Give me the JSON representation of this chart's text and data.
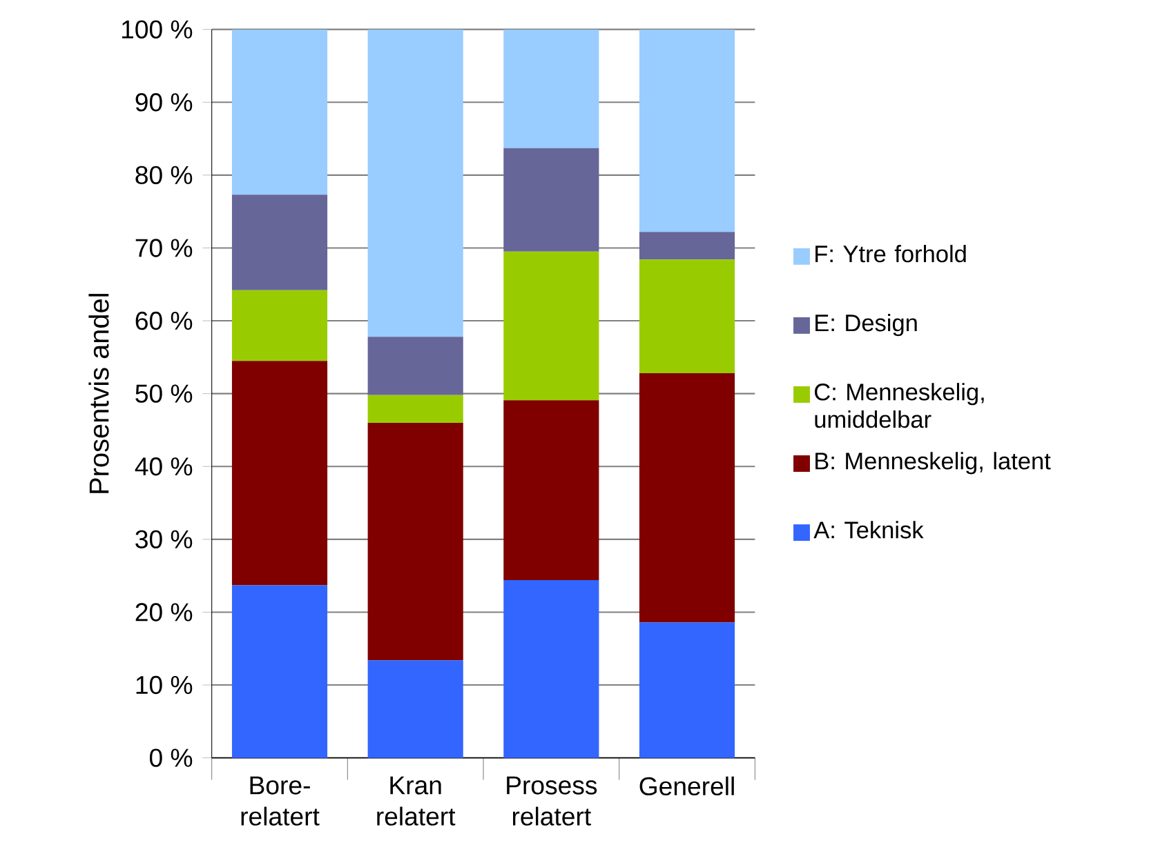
{
  "chart_data": {
    "type": "bar",
    "stacked": true,
    "ylabel": "Prosentvis andel",
    "categories": [
      "Bore- relatert",
      "Kran relatert",
      "Prosess relatert",
      "Generell"
    ],
    "series": [
      {
        "name": "A: Teknisk",
        "color": "#3366ff",
        "values": [
          23.7,
          13.4,
          24.4,
          18.6
        ]
      },
      {
        "name": "B: Menneskelig, latent",
        "color": "#800000",
        "values": [
          30.8,
          32.6,
          24.7,
          34.2
        ]
      },
      {
        "name": "C: Menneskelig, umiddelbar",
        "color": "#99cc00",
        "values": [
          9.7,
          3.8,
          20.4,
          15.6
        ]
      },
      {
        "name": "E: Design",
        "color": "#666699",
        "values": [
          13.1,
          8.0,
          14.2,
          3.8
        ]
      },
      {
        "name": "F: Ytre forhold",
        "color": "#99ccff",
        "values": [
          22.7,
          42.2,
          16.3,
          27.8
        ]
      }
    ],
    "ylim": [
      0,
      100
    ],
    "yticks": [
      {
        "value": 0,
        "label": "0 %"
      },
      {
        "value": 10,
        "label": "10 %"
      },
      {
        "value": 20,
        "label": "20 %"
      },
      {
        "value": 30,
        "label": "30 %"
      },
      {
        "value": 40,
        "label": "40 %"
      },
      {
        "value": 50,
        "label": "50 %"
      },
      {
        "value": 60,
        "label": "60 %"
      },
      {
        "value": 70,
        "label": "70 %"
      },
      {
        "value": 80,
        "label": "80 %"
      },
      {
        "value": 90,
        "label": "90 %"
      },
      {
        "value": 100,
        "label": "100 %"
      }
    ],
    "grid": "y",
    "legend": "right"
  }
}
